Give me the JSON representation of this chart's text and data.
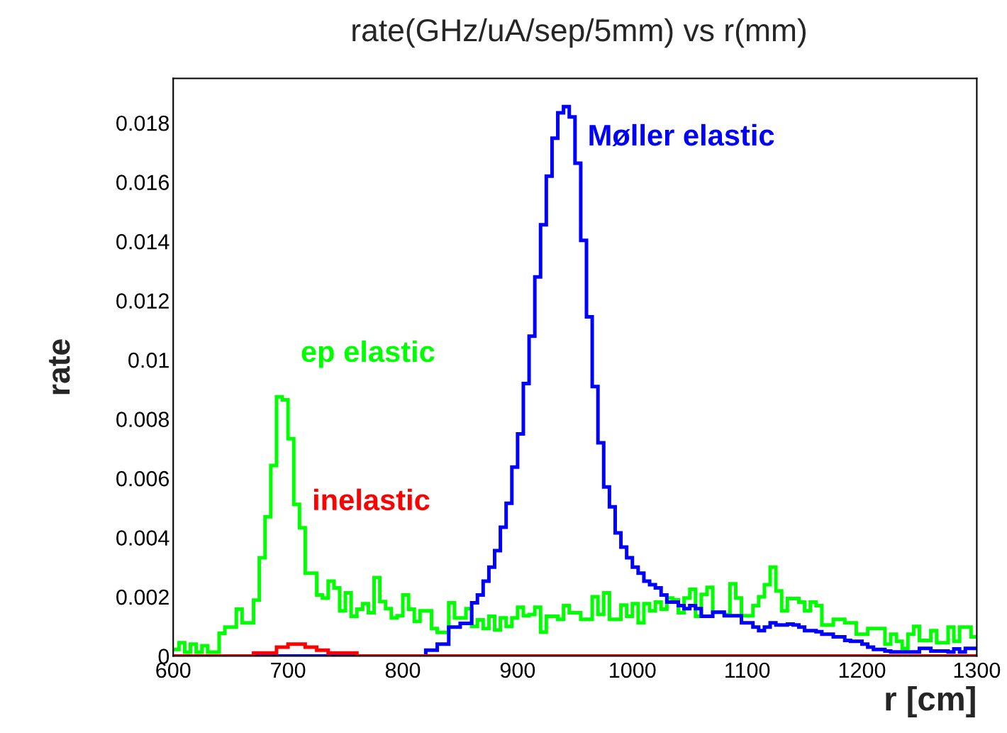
{
  "chart_data": {
    "type": "step",
    "title": "rate(GHz/uA/sep/5mm) vs r(mm)",
    "xlabel": "r [cm]",
    "ylabel": "rate",
    "xlim": [
      600,
      1300
    ],
    "xticks": [
      600,
      700,
      800,
      900,
      1000,
      1100,
      1200,
      1300
    ],
    "ylim": [
      0,
      0.0195
    ],
    "yticks": [
      0,
      0.002,
      0.004,
      0.006,
      0.008,
      0.01,
      0.012,
      0.014,
      0.016,
      0.018
    ],
    "grid": false,
    "legend": false,
    "series": [
      {
        "name": "ep elastic",
        "color": "#00ff00",
        "x": [
          600,
          605,
          610,
          615,
          620,
          625,
          630,
          640,
          645,
          655,
          660,
          670,
          675,
          680,
          685,
          690,
          695,
          700,
          705,
          710,
          715,
          725,
          730,
          735,
          740,
          745,
          750,
          755,
          760,
          765,
          770,
          775,
          780,
          785,
          790,
          795,
          800,
          805,
          810,
          815,
          825,
          830,
          840,
          845,
          855,
          860,
          865,
          870,
          875,
          880,
          885,
          890,
          895,
          900,
          905,
          910,
          915,
          920,
          925,
          935,
          940,
          945,
          955,
          965,
          970,
          975,
          980,
          990,
          995,
          1000,
          1005,
          1010,
          1015,
          1020,
          1025,
          1030,
          1035,
          1040,
          1045,
          1050,
          1055,
          1060,
          1065,
          1070,
          1080,
          1085,
          1090,
          1095,
          1105,
          1110,
          1115,
          1120,
          1125,
          1130,
          1135,
          1145,
          1150,
          1155,
          1160,
          1165,
          1175,
          1185,
          1195,
          1205,
          1220,
          1225,
          1230,
          1235,
          1240,
          1245,
          1250,
          1260,
          1265,
          1275,
          1280,
          1285,
          1295,
          1300
        ],
        "values": [
          0.00022,
          0.00045,
          0.00013,
          0.0004,
          0.00013,
          0.00035,
          0.00013,
          0.00077,
          0.00098,
          0.00158,
          0.00112,
          0.00189,
          0.00332,
          0.0047,
          0.00643,
          0.00875,
          0.00865,
          0.00734,
          0.00512,
          0.00433,
          0.0028,
          0.00206,
          0.00196,
          0.00253,
          0.0023,
          0.00153,
          0.00213,
          0.00134,
          0.00158,
          0.00177,
          0.00146,
          0.00265,
          0.00184,
          0.0016,
          0.00129,
          0.00136,
          0.00206,
          0.00158,
          0.00117,
          0.00153,
          0.00093,
          0.0008,
          0.0018,
          0.00129,
          0.0016,
          0.001,
          0.00122,
          0.00093,
          0.00134,
          0.00088,
          0.00129,
          0.001,
          0.00129,
          0.00165,
          0.00136,
          0.0014,
          0.00165,
          0.00081,
          0.00134,
          0.00124,
          0.0017,
          0.00146,
          0.00124,
          0.002,
          0.00141,
          0.00213,
          0.00124,
          0.00172,
          0.00134,
          0.00177,
          0.00112,
          0.00177,
          0.00153,
          0.00182,
          0.00158,
          0.00196,
          0.0019,
          0.00146,
          0.00196,
          0.00225,
          0.00134,
          0.00208,
          0.00232,
          0.00148,
          0.0014,
          0.00244,
          0.00196,
          0.00136,
          0.0017,
          0.002,
          0.00241,
          0.003,
          0.0022,
          0.00153,
          0.00194,
          0.00182,
          0.00153,
          0.00182,
          0.0017,
          0.00105,
          0.00124,
          0.00112,
          0.00074,
          0.00093,
          0.0004,
          0.00074,
          0.0005,
          0.00026,
          0.00074,
          0.001,
          0.00053,
          0.00086,
          0.00045,
          0.00098,
          0.0005,
          0.00098,
          0.00065,
          0.00065
        ]
      },
      {
        "name": "Møller elastic",
        "color": "#0000ff",
        "x": [
          600,
          820,
          830,
          840,
          850,
          860,
          865,
          870,
          875,
          880,
          885,
          890,
          895,
          900,
          905,
          910,
          915,
          920,
          925,
          930,
          935,
          940,
          945,
          950,
          955,
          960,
          965,
          970,
          975,
          980,
          985,
          990,
          995,
          1000,
          1005,
          1010,
          1015,
          1020,
          1025,
          1030,
          1040,
          1045,
          1050,
          1055,
          1060,
          1070,
          1080,
          1095,
          1105,
          1110,
          1115,
          1120,
          1125,
          1135,
          1140,
          1145,
          1150,
          1160,
          1165,
          1175,
          1185,
          1190,
          1200,
          1205,
          1210,
          1220,
          1225,
          1250,
          1260,
          1275,
          1280,
          1285,
          1290,
          1300
        ],
        "values": [
          0,
          0.0002,
          0.0004,
          0.00098,
          0.0011,
          0.0018,
          0.00206,
          0.00253,
          0.003,
          0.00356,
          0.00435,
          0.00516,
          0.00638,
          0.0075,
          0.0092,
          0.0108,
          0.0128,
          0.01456,
          0.0162,
          0.01748,
          0.01834,
          0.01855,
          0.0182,
          0.01664,
          0.01403,
          0.01145,
          0.0091,
          0.0072,
          0.00571,
          0.00504,
          0.00416,
          0.00368,
          0.00332,
          0.003,
          0.0028,
          0.00253,
          0.00241,
          0.0023,
          0.00206,
          0.00182,
          0.0017,
          0.0016,
          0.0017,
          0.0016,
          0.00134,
          0.00148,
          0.00136,
          0.00112,
          0.00098,
          0.00086,
          0.00098,
          0.00112,
          0.00105,
          0.00108,
          0.00105,
          0.00098,
          0.00086,
          0.00082,
          0.00074,
          0.00065,
          0.00053,
          0.0005,
          0.0004,
          0.0003,
          0.00022,
          0.00017,
          0.00014,
          0.00026,
          0.00017,
          0.00014,
          0.00024,
          0.00014,
          0.00026,
          0.00026
        ]
      },
      {
        "name": "inelastic",
        "color": "#ff0000",
        "x": [
          600,
          670,
          680,
          690,
          700,
          715,
          725,
          735,
          750,
          760,
          790,
          1300
        ],
        "values": [
          0,
          0.0001,
          0.0001,
          0.0003,
          0.0004,
          0.0003,
          0.0002,
          0.0001,
          0.0001,
          0,
          0,
          0
        ]
      }
    ]
  }
}
